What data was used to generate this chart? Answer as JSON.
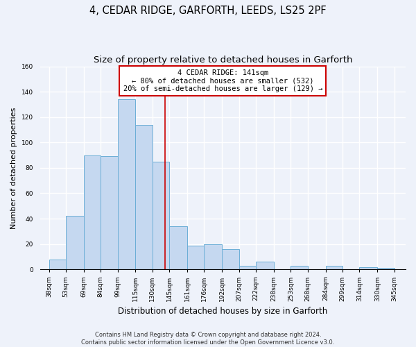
{
  "title": "4, CEDAR RIDGE, GARFORTH, LEEDS, LS25 2PF",
  "subtitle": "Size of property relative to detached houses in Garforth",
  "xlabel": "Distribution of detached houses by size in Garforth",
  "ylabel": "Number of detached properties",
  "bar_left_edges": [
    38,
    53,
    69,
    84,
    99,
    115,
    130,
    145,
    161,
    176,
    192,
    207,
    222,
    238,
    253,
    268,
    284,
    299,
    314,
    330
  ],
  "bar_widths": [
    15,
    16,
    15,
    15,
    16,
    15,
    15,
    16,
    15,
    16,
    15,
    15,
    16,
    15,
    15,
    16,
    15,
    15,
    16,
    15
  ],
  "bar_heights": [
    8,
    42,
    90,
    89,
    134,
    114,
    85,
    34,
    19,
    20,
    16,
    3,
    6,
    0,
    3,
    0,
    3,
    0,
    2,
    1
  ],
  "bar_color": "#C5D8F0",
  "bar_edge_color": "#6BAED6",
  "vline_x": 141,
  "vline_color": "#CC0000",
  "annotation_text_line1": "4 CEDAR RIDGE: 141sqm",
  "annotation_text_line2": "← 80% of detached houses are smaller (532)",
  "annotation_text_line3": "20% of semi-detached houses are larger (129) →",
  "annotation_box_edgecolor": "#CC0000",
  "annotation_box_facecolor": "white",
  "ylim": [
    0,
    160
  ],
  "yticks": [
    0,
    20,
    40,
    60,
    80,
    100,
    120,
    140,
    160
  ],
  "tick_labels": [
    "38sqm",
    "53sqm",
    "69sqm",
    "84sqm",
    "99sqm",
    "115sqm",
    "130sqm",
    "145sqm",
    "161sqm",
    "176sqm",
    "192sqm",
    "207sqm",
    "222sqm",
    "238sqm",
    "253sqm",
    "268sqm",
    "284sqm",
    "299sqm",
    "314sqm",
    "330sqm",
    "345sqm"
  ],
  "xtick_positions": [
    38,
    53,
    69,
    84,
    99,
    115,
    130,
    145,
    161,
    176,
    192,
    207,
    222,
    238,
    253,
    268,
    284,
    299,
    314,
    330,
    345
  ],
  "footer_text": "Contains HM Land Registry data © Crown copyright and database right 2024.\nContains public sector information licensed under the Open Government Licence v3.0.",
  "background_color": "#EEF2FA",
  "grid_color": "#FFFFFF",
  "title_fontsize": 10.5,
  "subtitle_fontsize": 9.5,
  "xlabel_fontsize": 8.5,
  "ylabel_fontsize": 8,
  "tick_fontsize": 6.5,
  "footer_fontsize": 6
}
